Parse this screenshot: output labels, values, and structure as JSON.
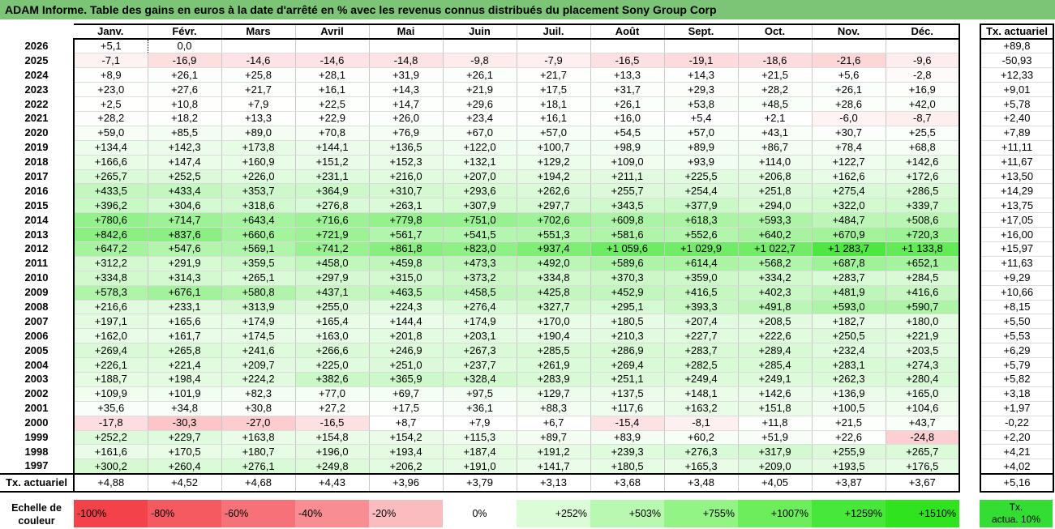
{
  "title": "ADAM Informe. Table des gains en euros à la date d'arrêté en % avec les revenus connus distribués du placement Sony Group Corp",
  "chart_data": {
    "type": "heatmap",
    "title": "ADAM Informe. Table des gains en euros à la date d'arrêté en % avec les revenus connus distribués du placement Sony Group Corp",
    "months": [
      "Janv.",
      "Févr.",
      "Mars",
      "Avril",
      "Mai",
      "Juin",
      "Juil.",
      "Août",
      "Sept.",
      "Oct.",
      "Nov.",
      "Déc."
    ],
    "side_header": "Tx. actuariel",
    "rows": [
      {
        "year": "2026",
        "values": [
          "+5,1",
          "0,0",
          "",
          "",
          "",
          "",
          "",
          "",
          "",
          "",
          "",
          ""
        ],
        "actuarial": "+89,8"
      },
      {
        "year": "2025",
        "values": [
          "-7,1",
          "-16,9",
          "-14,6",
          "-14,6",
          "-14,8",
          "-9,8",
          "-7,9",
          "-16,5",
          "-19,1",
          "-18,6",
          "-21,6",
          "-9,6"
        ],
        "actuarial": "-50,93"
      },
      {
        "year": "2024",
        "values": [
          "+8,9",
          "+26,1",
          "+25,8",
          "+28,1",
          "+31,9",
          "+26,1",
          "+21,7",
          "+13,3",
          "+14,3",
          "+21,5",
          "+5,6",
          "-2,8"
        ],
        "actuarial": "+12,33"
      },
      {
        "year": "2023",
        "values": [
          "+23,0",
          "+27,6",
          "+21,7",
          "+16,1",
          "+14,3",
          "+21,9",
          "+17,5",
          "+31,7",
          "+29,3",
          "+28,2",
          "+26,1",
          "+16,9"
        ],
        "actuarial": "+9,01"
      },
      {
        "year": "2022",
        "values": [
          "+2,5",
          "+10,8",
          "+7,9",
          "+22,5",
          "+14,7",
          "+29,6",
          "+18,1",
          "+26,1",
          "+53,8",
          "+48,5",
          "+28,6",
          "+42,0"
        ],
        "actuarial": "+5,78"
      },
      {
        "year": "2021",
        "values": [
          "+28,2",
          "+18,2",
          "+13,3",
          "+22,9",
          "+26,0",
          "+23,4",
          "+16,1",
          "+16,0",
          "+5,4",
          "+2,1",
          "-6,0",
          "-8,7"
        ],
        "actuarial": "+2,40"
      },
      {
        "year": "2020",
        "values": [
          "+59,0",
          "+85,5",
          "+89,0",
          "+70,8",
          "+76,9",
          "+67,0",
          "+57,0",
          "+54,5",
          "+57,0",
          "+43,1",
          "+30,7",
          "+25,5"
        ],
        "actuarial": "+7,89"
      },
      {
        "year": "2019",
        "values": [
          "+134,4",
          "+142,3",
          "+173,8",
          "+144,1",
          "+136,5",
          "+122,0",
          "+100,7",
          "+98,9",
          "+89,9",
          "+86,7",
          "+78,4",
          "+68,8"
        ],
        "actuarial": "+11,11"
      },
      {
        "year": "2018",
        "values": [
          "+166,6",
          "+147,4",
          "+160,9",
          "+151,2",
          "+152,3",
          "+132,1",
          "+129,2",
          "+109,0",
          "+93,9",
          "+114,0",
          "+122,7",
          "+142,6"
        ],
        "actuarial": "+11,67"
      },
      {
        "year": "2017",
        "values": [
          "+265,7",
          "+252,5",
          "+226,0",
          "+231,1",
          "+216,0",
          "+207,0",
          "+194,2",
          "+211,1",
          "+225,5",
          "+206,8",
          "+162,6",
          "+172,6"
        ],
        "actuarial": "+13,50"
      },
      {
        "year": "2016",
        "values": [
          "+433,5",
          "+433,4",
          "+353,7",
          "+364,9",
          "+310,7",
          "+293,6",
          "+262,6",
          "+255,7",
          "+254,4",
          "+251,8",
          "+275,4",
          "+286,5"
        ],
        "actuarial": "+14,29"
      },
      {
        "year": "2015",
        "values": [
          "+396,2",
          "+304,6",
          "+318,6",
          "+276,8",
          "+263,1",
          "+307,9",
          "+297,7",
          "+343,5",
          "+377,9",
          "+294,0",
          "+322,0",
          "+339,7"
        ],
        "actuarial": "+13,75"
      },
      {
        "year": "2014",
        "values": [
          "+780,6",
          "+714,7",
          "+643,4",
          "+716,6",
          "+779,8",
          "+751,0",
          "+702,6",
          "+609,8",
          "+618,3",
          "+593,3",
          "+484,7",
          "+508,6"
        ],
        "actuarial": "+17,05"
      },
      {
        "year": "2013",
        "values": [
          "+842,6",
          "+837,6",
          "+660,6",
          "+721,9",
          "+561,7",
          "+541,5",
          "+551,3",
          "+581,6",
          "+552,6",
          "+640,2",
          "+670,9",
          "+720,3"
        ],
        "actuarial": "+16,00"
      },
      {
        "year": "2012",
        "values": [
          "+647,2",
          "+547,6",
          "+569,1",
          "+741,2",
          "+861,8",
          "+823,0",
          "+937,4",
          "+1 059,6",
          "+1 029,9",
          "+1 022,7",
          "+1 283,7",
          "+1 133,8"
        ],
        "actuarial": "+15,97"
      },
      {
        "year": "2011",
        "values": [
          "+312,2",
          "+291,9",
          "+359,5",
          "+458,0",
          "+459,8",
          "+473,3",
          "+492,0",
          "+589,6",
          "+614,4",
          "+568,2",
          "+687,8",
          "+652,1"
        ],
        "actuarial": "+11,63"
      },
      {
        "year": "2010",
        "values": [
          "+334,8",
          "+314,3",
          "+265,1",
          "+297,9",
          "+315,0",
          "+373,2",
          "+334,8",
          "+370,3",
          "+359,0",
          "+334,2",
          "+283,7",
          "+284,5"
        ],
        "actuarial": "+9,29"
      },
      {
        "year": "2009",
        "values": [
          "+578,3",
          "+676,1",
          "+580,8",
          "+437,1",
          "+463,5",
          "+458,5",
          "+425,8",
          "+452,9",
          "+416,5",
          "+402,3",
          "+481,9",
          "+416,6"
        ],
        "actuarial": "+10,66"
      },
      {
        "year": "2008",
        "values": [
          "+216,6",
          "+233,1",
          "+313,9",
          "+255,0",
          "+224,3",
          "+276,4",
          "+327,7",
          "+295,1",
          "+393,3",
          "+491,8",
          "+593,0",
          "+590,7"
        ],
        "actuarial": "+8,15"
      },
      {
        "year": "2007",
        "values": [
          "+197,1",
          "+165,6",
          "+174,9",
          "+165,4",
          "+144,4",
          "+174,9",
          "+170,0",
          "+180,5",
          "+207,4",
          "+208,5",
          "+182,7",
          "+180,0"
        ],
        "actuarial": "+5,50"
      },
      {
        "year": "2006",
        "values": [
          "+162,0",
          "+161,7",
          "+174,5",
          "+163,0",
          "+201,8",
          "+203,1",
          "+190,4",
          "+210,3",
          "+227,7",
          "+222,6",
          "+250,5",
          "+221,9"
        ],
        "actuarial": "+5,53"
      },
      {
        "year": "2005",
        "values": [
          "+269,4",
          "+265,8",
          "+241,6",
          "+266,6",
          "+246,9",
          "+267,3",
          "+285,5",
          "+286,9",
          "+283,7",
          "+289,4",
          "+232,4",
          "+203,5"
        ],
        "actuarial": "+6,29"
      },
      {
        "year": "2004",
        "values": [
          "+226,1",
          "+221,4",
          "+209,7",
          "+225,0",
          "+251,0",
          "+237,7",
          "+261,9",
          "+269,4",
          "+282,5",
          "+285,4",
          "+283,1",
          "+274,3"
        ],
        "actuarial": "+5,79"
      },
      {
        "year": "2003",
        "values": [
          "+188,7",
          "+198,4",
          "+224,2",
          "+382,6",
          "+365,9",
          "+328,4",
          "+283,9",
          "+251,1",
          "+249,4",
          "+249,1",
          "+262,3",
          "+280,4"
        ],
        "actuarial": "+5,82"
      },
      {
        "year": "2002",
        "values": [
          "+109,9",
          "+101,9",
          "+82,3",
          "+77,0",
          "+69,7",
          "+97,5",
          "+129,7",
          "+137,5",
          "+148,1",
          "+142,6",
          "+136,9",
          "+165,0"
        ],
        "actuarial": "+3,18"
      },
      {
        "year": "2001",
        "values": [
          "+35,6",
          "+34,8",
          "+30,8",
          "+27,2",
          "+17,5",
          "+36,1",
          "+88,3",
          "+117,6",
          "+163,2",
          "+151,8",
          "+100,5",
          "+104,6"
        ],
        "actuarial": "+1,97"
      },
      {
        "year": "2000",
        "values": [
          "-17,8",
          "-30,3",
          "-27,0",
          "-16,5",
          "+8,7",
          "+7,9",
          "+6,7",
          "-15,4",
          "-8,1",
          "+11,8",
          "+21,5",
          "+43,7"
        ],
        "actuarial": "-0,22"
      },
      {
        "year": "1999",
        "values": [
          "+252,2",
          "+229,7",
          "+163,8",
          "+154,8",
          "+154,2",
          "+115,3",
          "+89,7",
          "+83,9",
          "+60,2",
          "+51,9",
          "+22,6",
          "-24,8"
        ],
        "actuarial": "+2,20"
      },
      {
        "year": "1998",
        "values": [
          "+161,6",
          "+170,5",
          "+180,7",
          "+196,0",
          "+193,4",
          "+187,4",
          "+191,2",
          "+239,3",
          "+276,3",
          "+317,9",
          "+255,9",
          "+265,7"
        ],
        "actuarial": "+4,21"
      },
      {
        "year": "1997",
        "values": [
          "+300,2",
          "+260,4",
          "+276,1",
          "+249,8",
          "+206,2",
          "+191,0",
          "+141,7",
          "+180,5",
          "+165,3",
          "+209,0",
          "+193,5",
          "+176,5"
        ],
        "actuarial": "+4,02"
      }
    ],
    "summary_row": {
      "label": "Tx. actuariel",
      "values": [
        "+4,88",
        "+4,52",
        "+4,68",
        "+4,43",
        "+3,96",
        "+3,79",
        "+3,13",
        "+3,68",
        "+3,48",
        "+4,05",
        "+3,87",
        "+3,67"
      ],
      "actuarial": "+5,16"
    },
    "color_scale": {
      "label": "Echelle de couleur",
      "stops": [
        {
          "label": "-100%",
          "value": -100,
          "color": "#f4424a"
        },
        {
          "label": "-80%",
          "value": -80,
          "color": "#f55a60"
        },
        {
          "label": "-60%",
          "value": -60,
          "color": "#f77278"
        },
        {
          "label": "-40%",
          "value": -40,
          "color": "#f88e93"
        },
        {
          "label": "-20%",
          "value": -20,
          "color": "#fbbcbf"
        },
        {
          "label": "0%",
          "value": 0,
          "color": "#ffffff"
        },
        {
          "label": "+252%",
          "value": 252,
          "color": "#dcfcd8"
        },
        {
          "label": "+503%",
          "value": 503,
          "color": "#b8f8b0"
        },
        {
          "label": "+755%",
          "value": 755,
          "color": "#92f484"
        },
        {
          "label": "+1007%",
          "value": 1007,
          "color": "#6cee5c"
        },
        {
          "label": "+1259%",
          "value": 1259,
          "color": "#48e83a"
        },
        {
          "label": "+1510%",
          "value": 1510,
          "color": "#2fe31f"
        }
      ],
      "side_label_line1": "Tx.",
      "side_label_line2": "actua. 10%",
      "side_color": "#33dd33"
    }
  }
}
